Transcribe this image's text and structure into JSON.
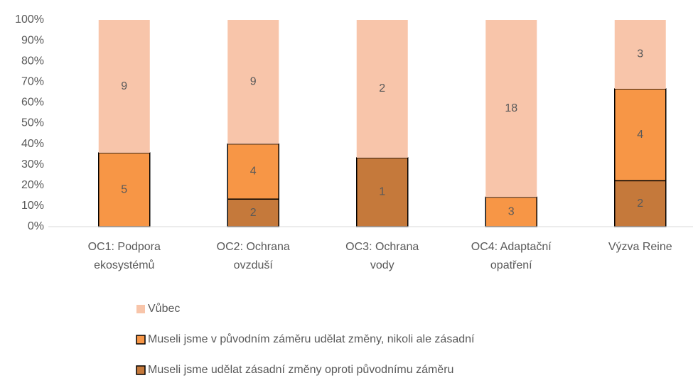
{
  "chart_data": {
    "type": "bar",
    "stacked": "percent",
    "categories": [
      [
        "OC1: Podpora",
        "ekosystémů"
      ],
      [
        "OC2: Ochrana",
        "ovzduší"
      ],
      [
        "OC3: Ochrana",
        "vody"
      ],
      [
        "OC4: Adaptační",
        "opatření"
      ],
      [
        "Výzva Reine"
      ]
    ],
    "series": [
      {
        "name": "Museli jsme udělat zásadní změny oproti původnímu záměru",
        "color": "#c5793b",
        "outline": "#000000",
        "values": [
          0,
          2,
          1,
          0,
          2
        ]
      },
      {
        "name": "Museli jsme v původním záměru udělat změny, nikoli ale zásadní",
        "color": "#f79646",
        "outline": "#000000",
        "values": [
          5,
          4,
          0,
          3,
          4
        ]
      },
      {
        "name": "Vůbec",
        "color": "#f8c5aa",
        "values": [
          9,
          9,
          2,
          18,
          3
        ]
      }
    ],
    "ylim": [
      0,
      100
    ],
    "yticks": [
      {
        "value": 0,
        "label": "0%"
      },
      {
        "value": 10,
        "label": "10%"
      },
      {
        "value": 20,
        "label": "20%"
      },
      {
        "value": 30,
        "label": "30%"
      },
      {
        "value": 40,
        "label": "40%"
      },
      {
        "value": 50,
        "label": "50%"
      },
      {
        "value": 60,
        "label": "60%"
      },
      {
        "value": 70,
        "label": "70%"
      },
      {
        "value": 80,
        "label": "80%"
      },
      {
        "value": 90,
        "label": "90%"
      },
      {
        "value": 100,
        "label": "100%"
      }
    ],
    "grid": false,
    "legend": "bottom"
  }
}
